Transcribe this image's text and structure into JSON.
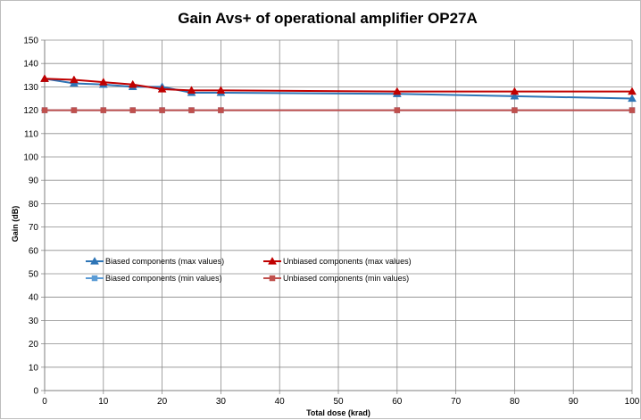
{
  "chart_data": {
    "type": "line",
    "title": "Gain Avs+ of operational amplifier OP27A",
    "xlabel": "Total dose (krad)",
    "ylabel": "Gain (dB)",
    "xlim": [
      0,
      100
    ],
    "ylim": [
      0,
      150
    ],
    "x_ticks": [
      0,
      10,
      20,
      30,
      40,
      50,
      60,
      70,
      80,
      90,
      100
    ],
    "y_ticks": [
      0,
      10,
      20,
      30,
      40,
      50,
      60,
      70,
      80,
      90,
      100,
      110,
      120,
      130,
      140,
      150
    ],
    "grid": true,
    "legend_placement": "middle-left",
    "series": [
      {
        "name": "Biased components (max values)",
        "color": "#2e75b6",
        "marker": "triangle",
        "x": [
          0,
          5,
          10,
          15,
          20,
          25,
          30,
          60,
          80,
          100
        ],
        "y": [
          133.5,
          131.5,
          131,
          130,
          130,
          127.5,
          127.5,
          127,
          126,
          125
        ]
      },
      {
        "name": "Unbiased components (max values)",
        "color": "#c00000",
        "marker": "triangle",
        "x": [
          0,
          5,
          10,
          15,
          20,
          25,
          30,
          60,
          80,
          100
        ],
        "y": [
          133.5,
          133,
          132,
          131,
          129,
          128.5,
          128.5,
          128,
          128,
          128
        ]
      },
      {
        "name": "Biased components (min values)",
        "color": "#5b9bd5",
        "marker": "square",
        "x": [
          0,
          5,
          10,
          15,
          20,
          25,
          30,
          60,
          80,
          100
        ],
        "y": [
          120,
          120,
          120,
          120,
          120,
          120,
          120,
          120,
          120,
          120
        ]
      },
      {
        "name": "Unbiased components (min values)",
        "color": "#c0504d",
        "marker": "square",
        "x": [
          0,
          5,
          10,
          15,
          20,
          25,
          30,
          60,
          80,
          100
        ],
        "y": [
          120,
          120,
          120,
          120,
          120,
          120,
          120,
          120,
          120,
          120
        ]
      }
    ]
  }
}
